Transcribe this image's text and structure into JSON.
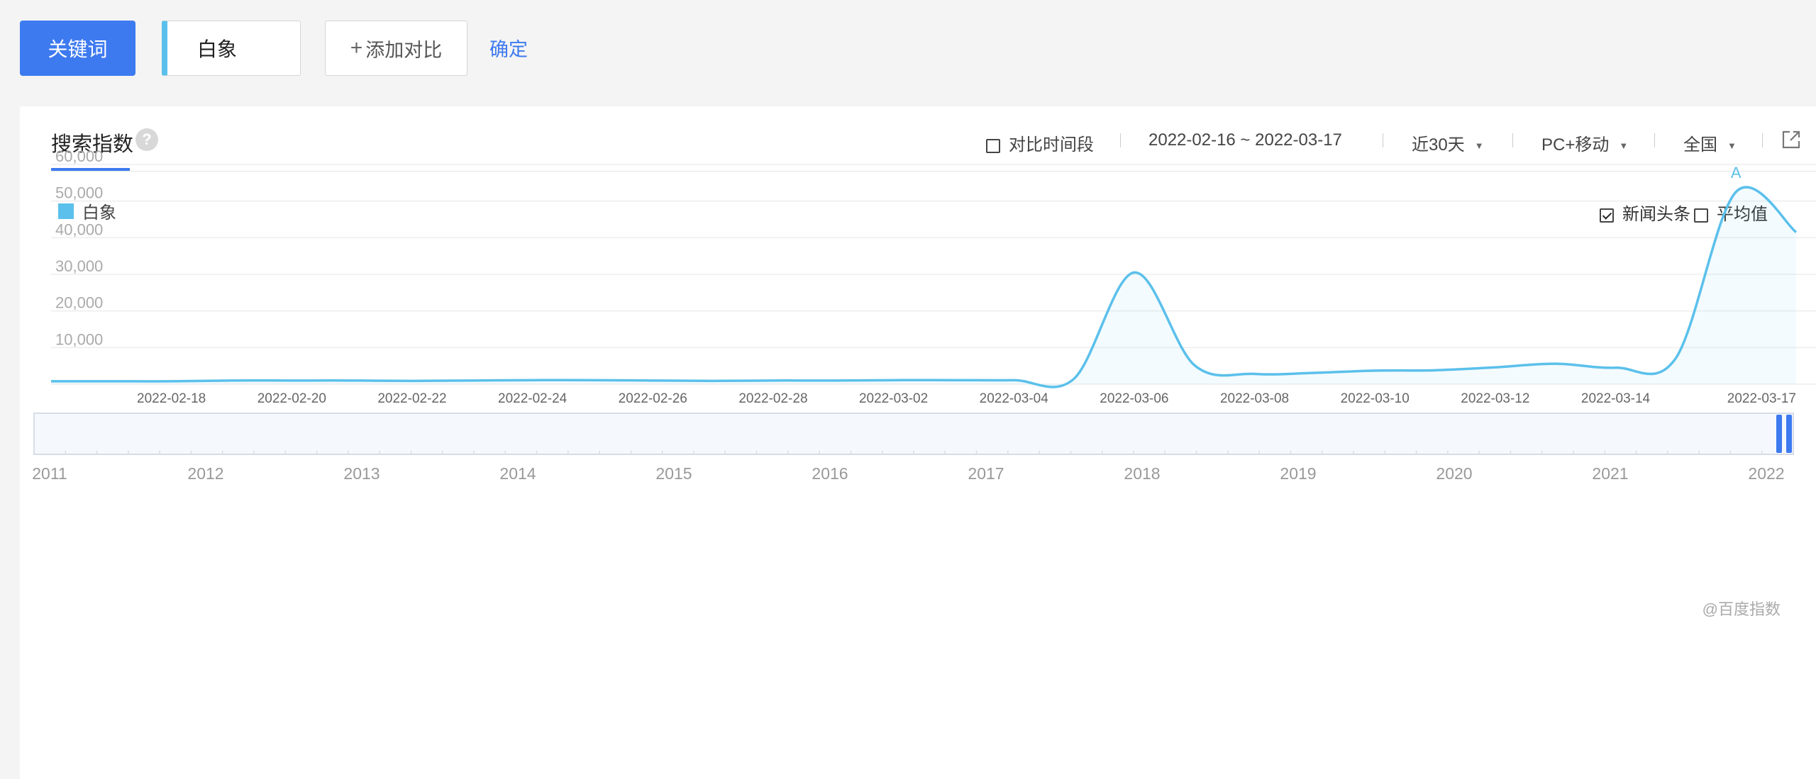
{
  "toolbar": {
    "keyword_button": "关键词",
    "keyword_value": "白象",
    "add_compare": "添加对比",
    "confirm": "确定"
  },
  "panel": {
    "title": "搜索指数",
    "help": "?",
    "compare_period": "对比时间段",
    "date_range": "2022-02-16 ~ 2022-03-17",
    "period": "近30天",
    "device": "PC+移动",
    "region": "全国",
    "news_label": "新闻头条",
    "avg_label": "平均值",
    "watermark": "@百度指数"
  },
  "colors": {
    "accent": "#3d7af0",
    "series": "#5bc0eb"
  },
  "icons": {
    "share": "share-external-icon",
    "help": "question-mark-icon",
    "caret": "caret-down-icon"
  },
  "chart_data": {
    "type": "area",
    "series": [
      {
        "name": "白象",
        "x": [
          "2022-02-16",
          "2022-02-17",
          "2022-02-18",
          "2022-02-19",
          "2022-02-20",
          "2022-02-21",
          "2022-02-22",
          "2022-02-23",
          "2022-02-24",
          "2022-02-25",
          "2022-02-26",
          "2022-02-27",
          "2022-02-28",
          "2022-03-01",
          "2022-03-02",
          "2022-03-03",
          "2022-03-04",
          "2022-03-05",
          "2022-03-06",
          "2022-03-07",
          "2022-03-08",
          "2022-03-09",
          "2022-03-10",
          "2022-03-11",
          "2022-03-12",
          "2022-03-13",
          "2022-03-14",
          "2022-03-15",
          "2022-03-16",
          "2022-03-17"
        ],
        "values": [
          800,
          800,
          800,
          1000,
          1000,
          1000,
          900,
          1000,
          1100,
          1100,
          1000,
          900,
          1000,
          1000,
          1100,
          1100,
          1100,
          1500,
          30500,
          5200,
          2800,
          3100,
          3700,
          3800,
          4600,
          5600,
          4500,
          7100,
          52500,
          41500
        ]
      }
    ],
    "y_ticks": [
      "60,000",
      "50,000",
      "40,000",
      "30,000",
      "20,000",
      "10,000"
    ],
    "ylim": [
      0,
      60000
    ],
    "x_tick_labels": [
      "2022-02-18",
      "2022-02-20",
      "2022-02-22",
      "2022-02-24",
      "2022-02-26",
      "2022-02-28",
      "2022-03-02",
      "2022-03-04",
      "2022-03-06",
      "2022-03-08",
      "2022-03-10",
      "2022-03-12",
      "2022-03-14",
      "2022-03-17"
    ],
    "grid": true,
    "annotation": {
      "label": "A",
      "x": "2022-03-16"
    },
    "overview": {
      "years": [
        "2011",
        "2012",
        "2013",
        "2014",
        "2015",
        "2016",
        "2017",
        "2018",
        "2019",
        "2020",
        "2021",
        "2022"
      ]
    }
  }
}
